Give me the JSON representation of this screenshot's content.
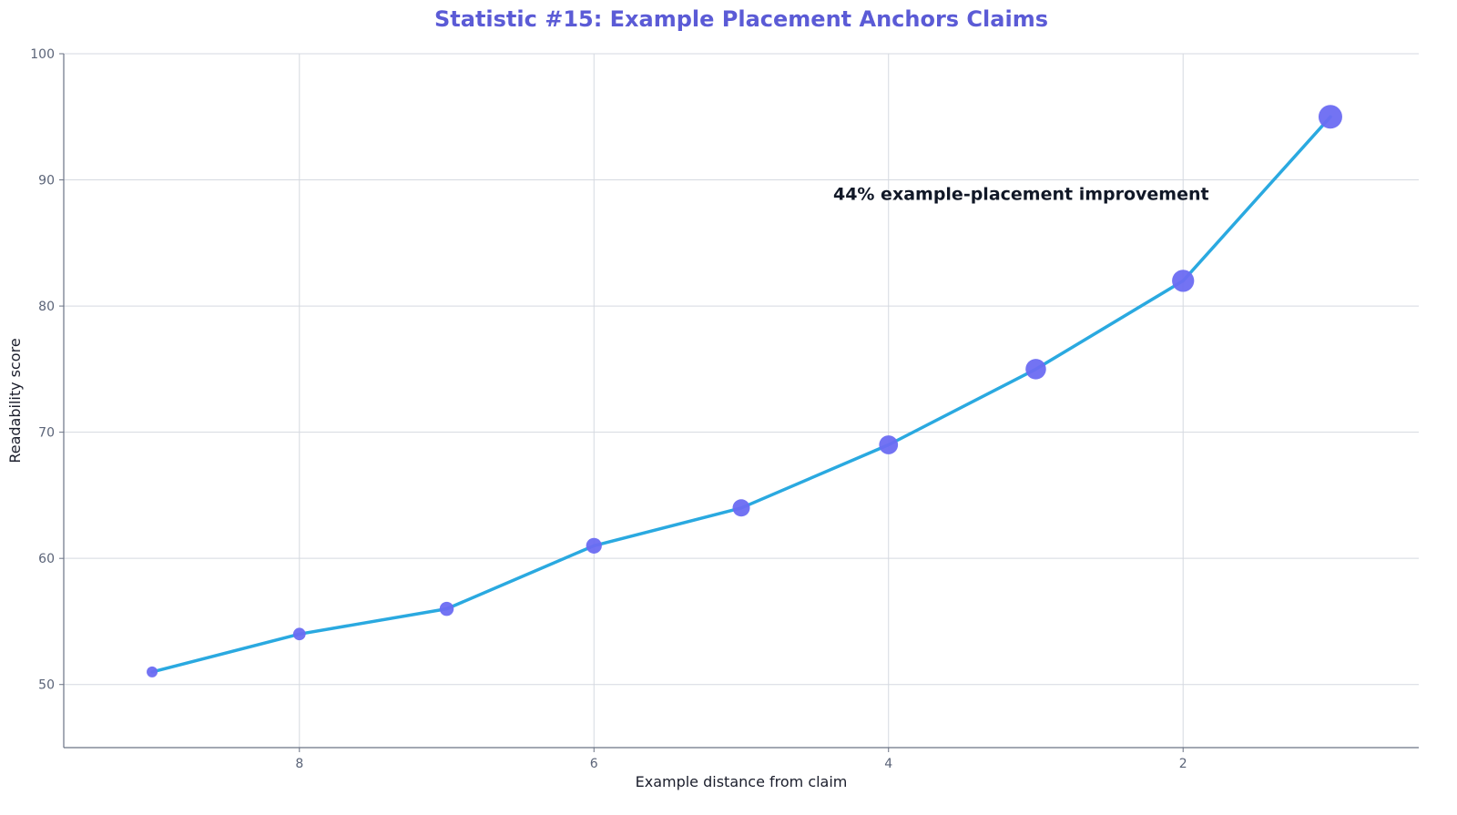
{
  "chart_data": {
    "type": "line",
    "title": "Statistic #15: Example Placement Anchors Claims",
    "xlabel": "Example distance from claim",
    "ylabel": "Readability score",
    "x_axis_reversed": true,
    "xlim": [
      9.6,
      0.4
    ],
    "ylim": [
      45,
      100
    ],
    "xticks": [
      8,
      6,
      4,
      2
    ],
    "yticks": [
      50,
      60,
      70,
      80,
      90,
      100
    ],
    "grid": true,
    "series": [
      {
        "x": [
          9,
          8,
          7,
          6,
          5,
          4,
          3,
          2,
          1
        ],
        "y": [
          51,
          54,
          56,
          61,
          64,
          69,
          75,
          82,
          95
        ]
      }
    ],
    "annotations": [
      {
        "text": "44% example-placement improvement",
        "x": 3.1,
        "y": 88.4
      }
    ],
    "colors": {
      "title": "#5b5bd6",
      "line": "#2aa9e0",
      "marker": "#6b6cf2",
      "grid": "#d5d9e0",
      "axis": "#6b7385"
    }
  }
}
